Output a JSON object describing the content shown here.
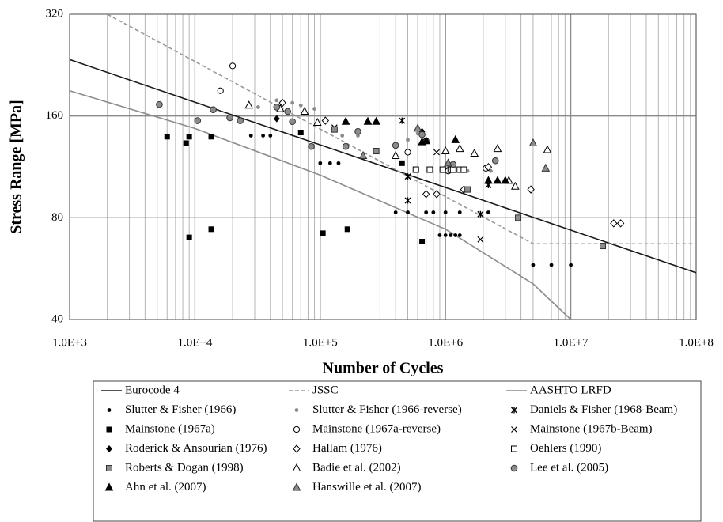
{
  "chart_data": {
    "type": "scatter",
    "xlabel": "Number of Cycles",
    "ylabel": "Stress Range [MPa]",
    "xscale": "log",
    "yscale": "log",
    "grid": true,
    "xlim": [
      1000,
      100000000
    ],
    "ylim": [
      40,
      320
    ],
    "xticks": [
      {
        "value": 1000,
        "label": "1.0E+3"
      },
      {
        "value": 10000,
        "label": "1.0E+4"
      },
      {
        "value": 100000,
        "label": "1.0E+5"
      },
      {
        "value": 1000000,
        "label": "1.0E+6"
      },
      {
        "value": 10000000,
        "label": "1.0E+7"
      },
      {
        "value": 100000000,
        "label": "1.0E+8"
      }
    ],
    "yticks": [
      40,
      80,
      160,
      320
    ],
    "series": [
      {
        "name": "Eurocode 4",
        "kind": "line",
        "style": "solid",
        "color": "#1a1a1a",
        "x": [
          1000,
          100000000
        ],
        "values": [
          235,
          55
        ]
      },
      {
        "name": "JSSC",
        "kind": "line",
        "style": "dashed",
        "color": "#999999",
        "x": [
          2000,
          5000000,
          100000000
        ],
        "values": [
          320,
          67,
          67
        ]
      },
      {
        "name": "AASHTO LRFD",
        "kind": "line",
        "style": "solid",
        "color": "#8c8c8c",
        "x": [
          1000,
          10000,
          100000,
          1000000,
          5000000,
          10000000
        ],
        "values": [
          190,
          147,
          107,
          74,
          51,
          40
        ]
      },
      {
        "name": "Slutter & Fisher (1966)",
        "kind": "scatter",
        "marker": "dot",
        "color": "#000000",
        "x": [
          28000,
          35000,
          40000,
          100000,
          120000,
          140000,
          400000,
          500000,
          700000,
          800000,
          1000000,
          1300000,
          2200000,
          5000000,
          7000000,
          10000000,
          900000,
          1000000,
          1100000,
          1200000,
          1300000
        ],
        "values": [
          140,
          140,
          140,
          116,
          116,
          116,
          83,
          83,
          83,
          83,
          83,
          83,
          83,
          58,
          58,
          58,
          71,
          71,
          71,
          71,
          71
        ]
      },
      {
        "name": "Slutter & Fisher (1966-reverse)",
        "kind": "scatter",
        "marker": "dot",
        "color": "#8c8c8c",
        "x": [
          32000,
          45000,
          60000,
          70000,
          90000,
          150000,
          200000,
          500000,
          600000,
          1050000,
          1500000,
          2300000
        ],
        "values": [
          170,
          178,
          175,
          172,
          168,
          140,
          140,
          136,
          142,
          112,
          110,
          110
        ]
      },
      {
        "name": "Daniels & Fisher (1968-Beam)",
        "kind": "scatter",
        "marker": "star",
        "color": "#000000",
        "x": [
          450000,
          500000,
          500000,
          2200000,
          1900000
        ],
        "values": [
          155,
          90,
          106,
          100,
          82
        ]
      },
      {
        "name": "Mainstone (1967a)",
        "kind": "scatter",
        "marker": "square",
        "color": "#000000",
        "x": [
          6000,
          8500,
          9000,
          13500,
          9000,
          13500,
          105000,
          165000,
          450000,
          650000,
          70000
        ],
        "values": [
          139,
          133,
          139,
          139,
          70,
          74,
          72,
          74,
          116,
          68,
          143
        ]
      },
      {
        "name": "Mainstone (1967a-reverse)",
        "kind": "scatter",
        "marker": "circle-open",
        "color": "#000000",
        "x": [
          20000,
          16000,
          500000,
          700000,
          1050000,
          2100000
        ],
        "values": [
          225,
          190,
          125,
          135,
          110,
          112
        ]
      },
      {
        "name": "Mainstone (1967b-Beam)",
        "kind": "scatter",
        "marker": "x",
        "color": "#000000",
        "x": [
          1900000,
          130000,
          850000
        ],
        "values": [
          69,
          148,
          125
        ]
      },
      {
        "name": "Roderick & Ansourian (1976)",
        "kind": "scatter",
        "marker": "diamond",
        "color": "#000000",
        "x": [
          45000,
          650000
        ],
        "values": [
          157,
          144
        ]
      },
      {
        "name": "Hallam (1976)",
        "kind": "scatter",
        "marker": "diamond-open",
        "color": "#000000",
        "x": [
          50000,
          110000,
          700000,
          850000,
          1400000,
          2200000,
          4800000,
          22000000,
          25000000
        ],
        "values": [
          175,
          155,
          94,
          94,
          97,
          113,
          97,
          77,
          77
        ]
      },
      {
        "name": "Oehlers (1990)",
        "kind": "scatter",
        "marker": "square-open",
        "color": "#000000",
        "x": [
          580000,
          750000,
          950000,
          1100000,
          1300000,
          1400000,
          1150000
        ],
        "values": [
          111,
          111,
          111,
          111,
          111,
          111,
          111
        ]
      },
      {
        "name": "Roberts & Dogan (1998)",
        "kind": "scatter",
        "marker": "square-gray",
        "color": "#8c8c8c",
        "x": [
          130000,
          280000,
          1500000,
          3800000,
          18000000
        ],
        "values": [
          146,
          126,
          97,
          80,
          66
        ]
      },
      {
        "name": "Badie et al. (2002)",
        "kind": "scatter",
        "marker": "triangle-open",
        "color": "#000000",
        "x": [
          27000,
          75000,
          48000,
          95000,
          400000,
          1000000,
          1300000,
          1700000,
          2600000,
          6500000,
          3200000,
          3600000
        ],
        "values": [
          172,
          165,
          168,
          153,
          122,
          126,
          128,
          124,
          128,
          127,
          103,
          99
        ]
      },
      {
        "name": "Lee et al.  (2005)",
        "kind": "scatter",
        "marker": "circle-gray",
        "color": "#8c8c8c",
        "x": [
          5200,
          10500,
          14000,
          19000,
          23000,
          45000,
          55000,
          60000,
          85000,
          160000,
          200000,
          400000,
          650000,
          2500000,
          1150000
        ],
        "values": [
          173,
          155,
          167,
          158,
          155,
          170,
          165,
          154,
          130,
          130,
          144,
          131,
          141,
          118,
          115
        ]
      },
      {
        "name": "Ahn et al. (2007)",
        "kind": "scatter",
        "marker": "triangle",
        "color": "#000000",
        "x": [
          160000,
          240000,
          280000,
          650000,
          700000,
          1200000,
          2200000,
          2600000,
          3000000
        ],
        "values": [
          154,
          154,
          154,
          134,
          135,
          136,
          103,
          103,
          103
        ]
      },
      {
        "name": "Hanswille et al. (2007)",
        "kind": "scatter",
        "marker": "triangle-gray",
        "color": "#8c8c8c",
        "x": [
          220000,
          600000,
          6300000,
          5000000,
          1050000
        ],
        "values": [
          122,
          147,
          112,
          133,
          116
        ]
      }
    ]
  }
}
